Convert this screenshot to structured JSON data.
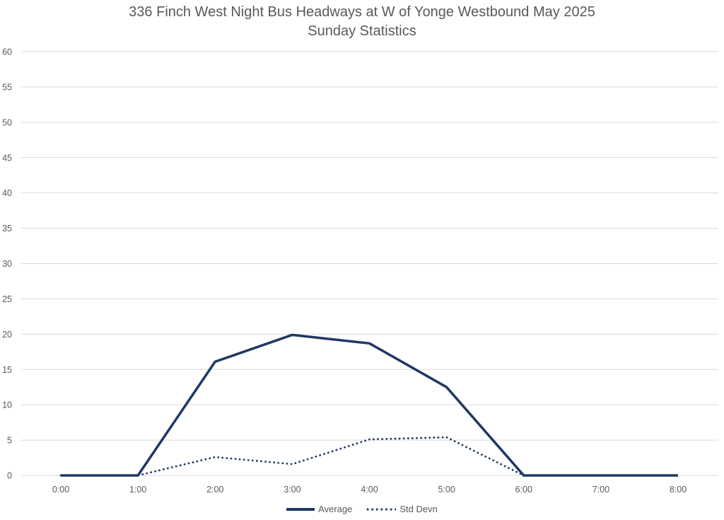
{
  "title": {
    "line1": "336 Finch West Night Bus Headways at W of Yonge Westbound May 2025",
    "line2": "Sunday Statistics"
  },
  "colors": {
    "text": "#595959",
    "line": "#1f3864",
    "grid": "#d9d9d9",
    "background": "#ffffff"
  },
  "chart_data": {
    "type": "line",
    "title": "336 Finch West Night Bus Headways at W of Yonge Westbound May 2025",
    "subtitle": "Sunday Statistics",
    "x_labels": [
      "0:00",
      "1:00",
      "2:00",
      "3:00",
      "4:00",
      "5:00",
      "6:00",
      "7:00",
      "8:00"
    ],
    "series": [
      {
        "name": "Average",
        "style": "solid",
        "values": [
          0,
          0,
          16.1,
          19.9,
          18.7,
          12.5,
          0,
          0,
          0
        ]
      },
      {
        "name": "Std Devn",
        "style": "dotted",
        "values": [
          0,
          0,
          2.6,
          1.6,
          5.1,
          5.4,
          0,
          0,
          0
        ]
      }
    ],
    "ylim": [
      0,
      60
    ],
    "ytick_step": 5,
    "xlabel": "",
    "ylabel": "",
    "grid": true,
    "legend_position": "bottom",
    "line_color": "#1f3864",
    "grid_color": "#d9d9d9"
  }
}
